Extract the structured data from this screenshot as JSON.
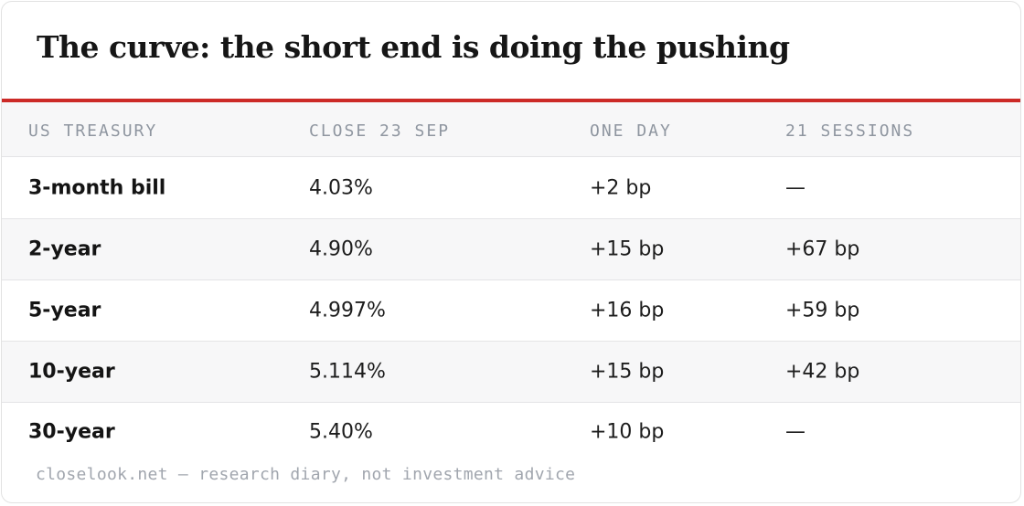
{
  "title": "The curve: the short end is doing the pushing",
  "colors": {
    "accent_rule": "#cc2a27",
    "header_text": "#8f96a0",
    "zebra": "#f7f7f8"
  },
  "table": {
    "headers": [
      "US TREASURY",
      "CLOSE 23 SEP",
      "ONE DAY",
      "21 SESSIONS"
    ],
    "rows": [
      {
        "name": "3-month bill",
        "close": "4.03%",
        "one_day": "+2 bp",
        "sessions": "—"
      },
      {
        "name": "2-year",
        "close": "4.90%",
        "one_day": "+15 bp",
        "sessions": "+67 bp"
      },
      {
        "name": "5-year",
        "close": "4.997%",
        "one_day": "+16 bp",
        "sessions": "+59 bp"
      },
      {
        "name": "10-year",
        "close": "5.114%",
        "one_day": "+15 bp",
        "sessions": "+42 bp"
      },
      {
        "name": "30-year",
        "close": "5.40%",
        "one_day": "+10 bp",
        "sessions": "—"
      }
    ]
  },
  "footer": "closelook.net — research diary, not investment advice"
}
